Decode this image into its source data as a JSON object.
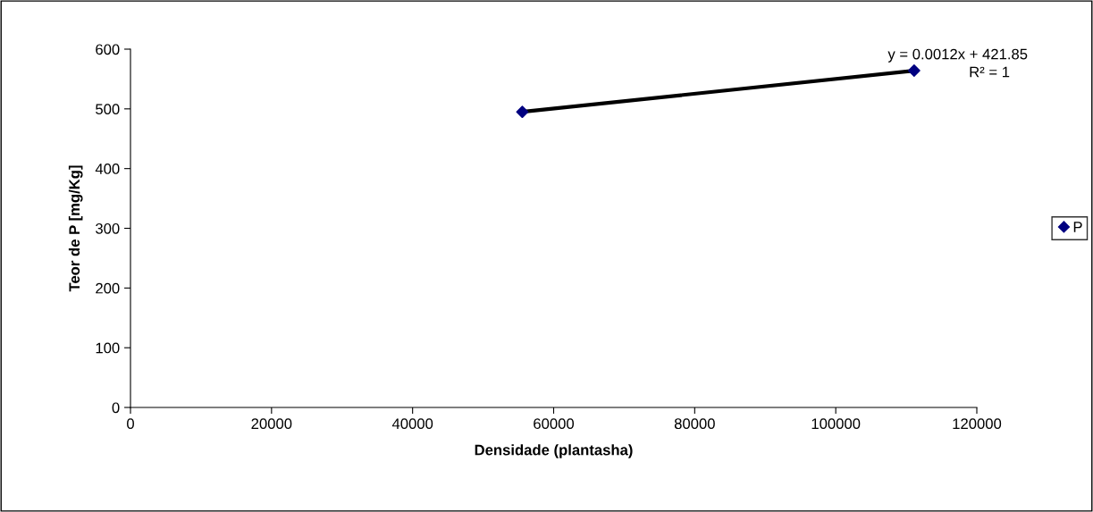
{
  "chart_data": {
    "type": "scatter",
    "xlabel": "Densidade (plantasha)",
    "ylabel": "Teor de P [mg/Kg]",
    "series": [
      {
        "name": "P",
        "type": "scatter",
        "color": "#000080",
        "values": [
          495,
          564
        ],
        "marker": "diamond"
      },
      {
        "type": "line",
        "color": "#000000",
        "values": [
          495,
          564
        ],
        "line_style": "solid"
      }
    ],
    "x": [
      55555,
      111111
    ],
    "annotations": [
      "y = 0.0012x + 421.85",
      "R² = 1"
    ],
    "xlim": [
      0,
      120000
    ],
    "xticks": [
      0,
      20000,
      40000,
      60000,
      80000,
      100000,
      120000
    ],
    "ylim": [
      0,
      600
    ],
    "yticks": [
      0,
      100,
      200,
      300,
      400,
      500,
      600
    ],
    "grid": false,
    "legend": "right"
  }
}
